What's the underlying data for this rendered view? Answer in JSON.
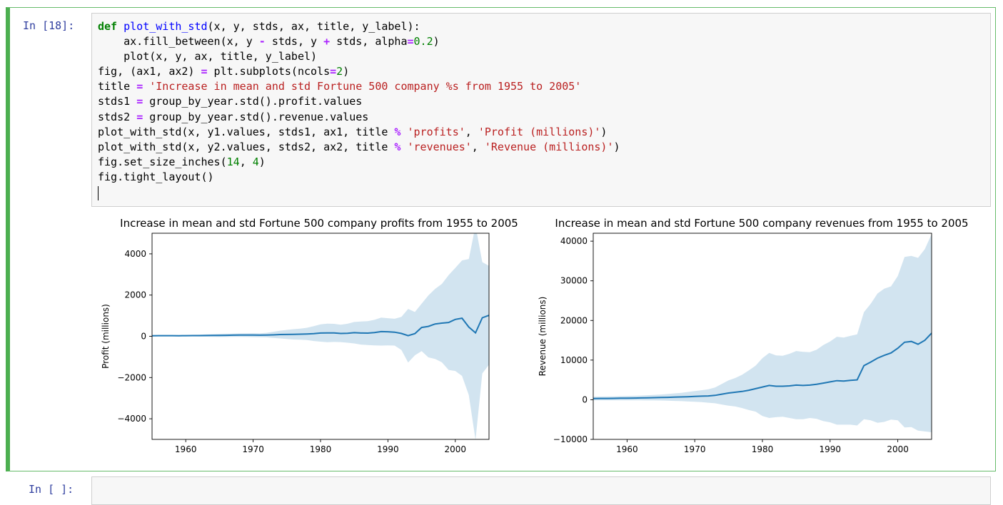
{
  "cells": [
    {
      "prompt": "In  [18]:",
      "code_lines": [
        [
          [
            "kw",
            "def"
          ],
          [
            "t",
            " "
          ],
          [
            "fn",
            "plot_with_std"
          ],
          [
            "t",
            "(x, y, stds, ax, title, y_label):"
          ]
        ],
        [
          [
            "t",
            "    ax.fill_between(x, y "
          ],
          [
            "op",
            "-"
          ],
          [
            "t",
            " stds, y "
          ],
          [
            "op",
            "+"
          ],
          [
            "t",
            " stds, alpha"
          ],
          [
            "op",
            "="
          ],
          [
            "num",
            "0.2"
          ],
          [
            "t",
            ")"
          ]
        ],
        [
          [
            "t",
            "    plot(x, y, ax, title, y_label)"
          ]
        ],
        [
          [
            "t",
            "fig, (ax1, ax2) "
          ],
          [
            "op",
            "="
          ],
          [
            "t",
            " plt.subplots(ncols"
          ],
          [
            "op",
            "="
          ],
          [
            "num",
            "2"
          ],
          [
            "t",
            ")"
          ]
        ],
        [
          [
            "t",
            "title "
          ],
          [
            "op",
            "="
          ],
          [
            "t",
            " "
          ],
          [
            "str",
            "'Increase in mean and std Fortune 500 company %s from 1955 to 2005'"
          ]
        ],
        [
          [
            "t",
            "stds1 "
          ],
          [
            "op",
            "="
          ],
          [
            "t",
            " group_by_year.std().profit.values"
          ]
        ],
        [
          [
            "t",
            "stds2 "
          ],
          [
            "op",
            "="
          ],
          [
            "t",
            " group_by_year.std().revenue.values"
          ]
        ],
        [
          [
            "t",
            "plot_with_std(x, y1.values, stds1, ax1, title "
          ],
          [
            "op",
            "%"
          ],
          [
            "t",
            " "
          ],
          [
            "str",
            "'profits'"
          ],
          [
            "t",
            ", "
          ],
          [
            "str",
            "'Profit (millions)'"
          ],
          [
            "t",
            ")"
          ]
        ],
        [
          [
            "t",
            "plot_with_std(x, y2.values, stds2, ax2, title "
          ],
          [
            "op",
            "%"
          ],
          [
            "t",
            " "
          ],
          [
            "str",
            "'revenues'"
          ],
          [
            "t",
            ", "
          ],
          [
            "str",
            "'Revenue (millions)'"
          ],
          [
            "t",
            ")"
          ]
        ],
        [
          [
            "t",
            "fig.set_size_inches("
          ],
          [
            "num",
            "14"
          ],
          [
            "t",
            ", "
          ],
          [
            "num",
            "4"
          ],
          [
            "t",
            ")"
          ]
        ],
        [
          [
            "t",
            "fig.tight_layout()"
          ]
        ],
        [
          [
            "t",
            ""
          ]
        ]
      ]
    },
    {
      "prompt": "In  [ ]:",
      "code_lines": []
    }
  ],
  "colors": {
    "line": "#1f77b4",
    "band": "#1f77b4",
    "band_alpha": 0.2,
    "cell_border": "#4caf50",
    "prompt": "#303f9f"
  },
  "chart_data": [
    {
      "type": "line",
      "title": "Increase in mean and std Fortune 500 company profits from 1955 to 2005",
      "xlabel": "",
      "ylabel": "Profit (millions)",
      "xlim": [
        1955,
        2005
      ],
      "ylim": [
        -5000,
        5000
      ],
      "xticks": [
        1960,
        1970,
        1980,
        1990,
        2000
      ],
      "yticks": [
        -4000,
        -2000,
        0,
        2000,
        4000
      ],
      "ytick_labels": [
        "−4000",
        "−2000",
        "0",
        "2000",
        "4000"
      ],
      "grid": false,
      "x": [
        1955,
        1956,
        1957,
        1958,
        1959,
        1960,
        1961,
        1962,
        1963,
        1964,
        1965,
        1966,
        1967,
        1968,
        1969,
        1970,
        1971,
        1972,
        1973,
        1974,
        1975,
        1976,
        1977,
        1978,
        1979,
        1980,
        1981,
        1982,
        1983,
        1984,
        1985,
        1986,
        1987,
        1988,
        1989,
        1990,
        1991,
        1992,
        1993,
        1994,
        1995,
        1996,
        1997,
        1998,
        1999,
        2000,
        2001,
        2002,
        2003,
        2004,
        2005
      ],
      "mean": [
        28,
        30,
        32,
        30,
        28,
        32,
        33,
        35,
        38,
        40,
        45,
        50,
        55,
        58,
        60,
        58,
        55,
        60,
        70,
        85,
        90,
        95,
        105,
        115,
        130,
        160,
        165,
        165,
        140,
        150,
        175,
        160,
        155,
        180,
        230,
        220,
        200,
        140,
        30,
        130,
        430,
        480,
        600,
        640,
        670,
        820,
        880,
        450,
        170,
        900,
        1020
      ],
      "std": [
        25,
        28,
        30,
        30,
        30,
        35,
        38,
        45,
        55,
        65,
        75,
        80,
        80,
        85,
        90,
        95,
        95,
        110,
        150,
        190,
        220,
        250,
        270,
        300,
        360,
        420,
        450,
        440,
        420,
        460,
        520,
        560,
        580,
        620,
        680,
        660,
        650,
        800,
        1300,
        1050,
        1150,
        1500,
        1700,
        1900,
        2300,
        2500,
        2800,
        3300,
        5200,
        2700,
        2400
      ]
    },
    {
      "type": "line",
      "title": "Increase in mean and std Fortune 500 company revenues from 1955 to 2005",
      "xlabel": "",
      "ylabel": "Revenue (millions)",
      "xlim": [
        1955,
        2005
      ],
      "ylim": [
        -10000,
        42000
      ],
      "xticks": [
        1960,
        1970,
        1980,
        1990,
        2000
      ],
      "yticks": [
        -10000,
        0,
        10000,
        20000,
        30000,
        40000
      ],
      "ytick_labels": [
        "−10000",
        "0",
        "10000",
        "20000",
        "30000",
        "40000"
      ],
      "grid": false,
      "x": [
        1955,
        1956,
        1957,
        1958,
        1959,
        1960,
        1961,
        1962,
        1963,
        1964,
        1965,
        1966,
        1967,
        1968,
        1969,
        1970,
        1971,
        1972,
        1973,
        1974,
        1975,
        1976,
        1977,
        1978,
        1979,
        1980,
        1981,
        1982,
        1983,
        1984,
        1985,
        1986,
        1987,
        1988,
        1989,
        1990,
        1991,
        1992,
        1993,
        1994,
        1995,
        1996,
        1997,
        1998,
        1999,
        2000,
        2001,
        2002,
        2003,
        2004,
        2005
      ],
      "mean": [
        300,
        320,
        330,
        350,
        380,
        400,
        420,
        450,
        480,
        520,
        560,
        600,
        650,
        700,
        760,
        850,
        900,
        950,
        1100,
        1400,
        1700,
        1900,
        2100,
        2400,
        2800,
        3200,
        3600,
        3400,
        3400,
        3500,
        3700,
        3600,
        3700,
        3900,
        4200,
        4500,
        4800,
        4700,
        4900,
        5000,
        8600,
        9500,
        10500,
        11200,
        11800,
        13000,
        14500,
        14700,
        14000,
        15000,
        16800
      ],
      "std": [
        450,
        470,
        490,
        500,
        520,
        550,
        570,
        600,
        650,
        700,
        760,
        850,
        950,
        1050,
        1200,
        1350,
        1500,
        1700,
        2000,
        2600,
        3200,
        3600,
        4200,
        5000,
        5800,
        7300,
        8200,
        7800,
        7700,
        8100,
        8600,
        8500,
        8300,
        8700,
        9600,
        10200,
        11100,
        11000,
        11200,
        11500,
        13500,
        14700,
        16300,
        16800,
        16800,
        18200,
        21500,
        21600,
        21800,
        23000,
        25000
      ]
    }
  ]
}
